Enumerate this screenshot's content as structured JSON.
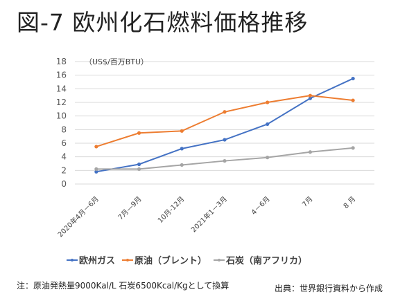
{
  "title": "図-7 欧州化石燃料価格推移",
  "chart_data": {
    "type": "line",
    "title": "図-7 欧州化石燃料価格推移",
    "ylabel": "（US$/百万BTU）",
    "xlabel": "",
    "ylim": [
      0,
      18
    ],
    "yticks": [
      0,
      2,
      4,
      6,
      8,
      10,
      12,
      14,
      16,
      18
    ],
    "grid": true,
    "legend_position": "bottom",
    "categories": [
      "2020年4月－6月",
      "7月—9月",
      "10月-12月",
      "2021年1－3月",
      "4－6月",
      "7月",
      "8 月"
    ],
    "series": [
      {
        "name": "欧州ガス",
        "color": "#4472C4",
        "values": [
          1.8,
          2.9,
          5.2,
          6.5,
          8.8,
          12.6,
          15.5
        ]
      },
      {
        "name": "原油（ブレント）",
        "color": "#ED7D31",
        "values": [
          5.5,
          7.5,
          7.8,
          10.6,
          12.0,
          13.0,
          12.3
        ]
      },
      {
        "name": "石炭（南アフリカ）",
        "color": "#A5A5A5",
        "values": [
          2.2,
          2.2,
          2.8,
          3.4,
          3.9,
          4.7,
          5.3
        ]
      }
    ]
  },
  "footnote": "注：原油発熱量9000Kal/L 石炭6500Kcal/Kgとして換算",
  "source": "出典：世界銀行資料から作成"
}
